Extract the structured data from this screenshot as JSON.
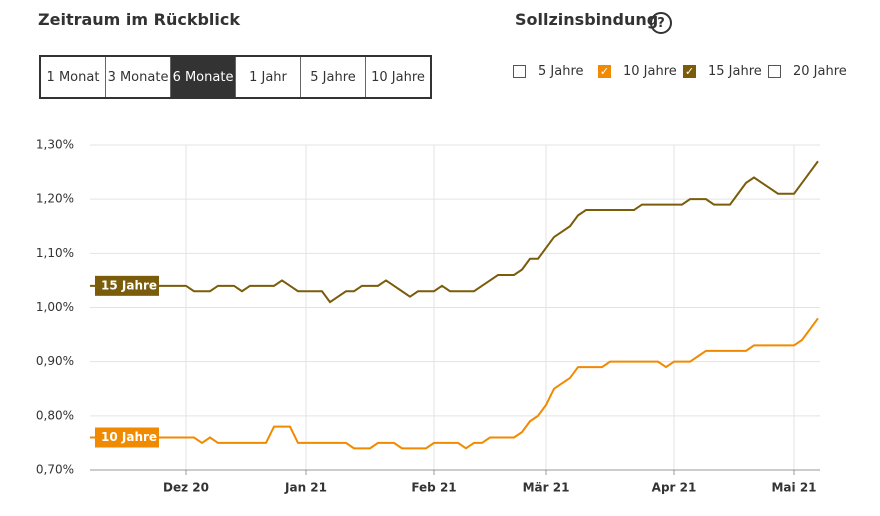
{
  "ui": {
    "range_title": "Zeitraum im Rückblick",
    "range_buttons": [
      {
        "label": "1 Monat",
        "active": false
      },
      {
        "label": "3 Monate",
        "active": false
      },
      {
        "label": "6 Monate",
        "active": true
      },
      {
        "label": "1 Jahr",
        "active": false
      },
      {
        "label": "5 Jahre",
        "active": false
      },
      {
        "label": "10 Jahre",
        "active": false
      }
    ],
    "filter_title": "Sollzinsbindung",
    "help": "?",
    "filters": [
      {
        "label": "5 Jahre",
        "checked": false
      },
      {
        "label": "10 Jahre",
        "checked": true,
        "color": "#f08a00"
      },
      {
        "label": "15 Jahre",
        "checked": true,
        "color": "#7a5c0a"
      },
      {
        "label": "20 Jahre",
        "checked": false
      }
    ]
  },
  "chart_data": {
    "type": "line",
    "categories": [
      null,
      null,
      null,
      null,
      null,
      null,
      null,
      null,
      null,
      null,
      null,
      null,
      "Dez 20",
      null,
      null,
      null,
      null,
      null,
      null,
      null,
      null,
      null,
      null,
      null,
      null,
      null,
      null,
      "Jan 21",
      null,
      null,
      null,
      null,
      null,
      null,
      null,
      null,
      null,
      null,
      null,
      null,
      null,
      null,
      null,
      "Feb 21",
      null,
      null,
      null,
      null,
      null,
      null,
      null,
      null,
      null,
      null,
      null,
      null,
      null,
      "Mär 21",
      null,
      null,
      null,
      null,
      null,
      null,
      null,
      null,
      null,
      null,
      null,
      null,
      null,
      null,
      null,
      "Apr 21",
      null,
      null,
      null,
      null,
      null,
      null,
      null,
      null,
      null,
      null,
      null,
      null,
      null,
      null,
      "Mai 21",
      null,
      null,
      null
    ],
    "series": [
      {
        "name": "15 Jahre",
        "color": "#7a5c0a",
        "values": [
          1.04,
          1.04,
          1.04,
          1.04,
          1.04,
          1.04,
          1.04,
          1.04,
          1.04,
          1.04,
          1.04,
          1.04,
          1.04,
          1.03,
          1.03,
          1.03,
          1.04,
          1.04,
          1.04,
          1.03,
          1.04,
          1.04,
          1.04,
          1.04,
          1.05,
          1.04,
          1.03,
          1.03,
          1.03,
          1.03,
          1.01,
          1.02,
          1.03,
          1.03,
          1.04,
          1.04,
          1.04,
          1.05,
          1.04,
          1.03,
          1.02,
          1.03,
          1.03,
          1.03,
          1.04,
          1.03,
          1.03,
          1.03,
          1.03,
          1.04,
          1.05,
          1.06,
          1.06,
          1.06,
          1.07,
          1.09,
          1.09,
          1.11,
          1.13,
          1.14,
          1.15,
          1.17,
          1.18,
          1.18,
          1.18,
          1.18,
          1.18,
          1.18,
          1.18,
          1.19,
          1.19,
          1.19,
          1.19,
          1.19,
          1.19,
          1.2,
          1.2,
          1.2,
          1.19,
          1.19,
          1.19,
          1.21,
          1.23,
          1.24,
          1.23,
          1.22,
          1.21,
          1.21,
          1.21,
          1.23,
          1.25,
          1.27
        ]
      },
      {
        "name": "10 Jahre",
        "color": "#f08a00",
        "values": [
          0.76,
          0.76,
          0.76,
          0.76,
          0.76,
          0.76,
          0.76,
          0.76,
          0.76,
          0.76,
          0.76,
          0.76,
          0.76,
          0.76,
          0.75,
          0.76,
          0.75,
          0.75,
          0.75,
          0.75,
          0.75,
          0.75,
          0.75,
          0.78,
          0.78,
          0.78,
          0.75,
          0.75,
          0.75,
          0.75,
          0.75,
          0.75,
          0.75,
          0.74,
          0.74,
          0.74,
          0.75,
          0.75,
          0.75,
          0.74,
          0.74,
          0.74,
          0.74,
          0.75,
          0.75,
          0.75,
          0.75,
          0.74,
          0.75,
          0.75,
          0.76,
          0.76,
          0.76,
          0.76,
          0.77,
          0.79,
          0.8,
          0.82,
          0.85,
          0.86,
          0.87,
          0.89,
          0.89,
          0.89,
          0.89,
          0.9,
          0.9,
          0.9,
          0.9,
          0.9,
          0.9,
          0.9,
          0.89,
          0.9,
          0.9,
          0.9,
          0.91,
          0.92,
          0.92,
          0.92,
          0.92,
          0.92,
          0.92,
          0.93,
          0.93,
          0.93,
          0.93,
          0.93,
          0.93,
          0.94,
          0.96,
          0.98
        ]
      }
    ],
    "ylim": [
      0.7,
      1.3
    ],
    "yticks": [
      {
        "value": 0.7,
        "label": "0,70%"
      },
      {
        "value": 0.8,
        "label": "0,80%"
      },
      {
        "value": 0.9,
        "label": "0,90%"
      },
      {
        "value": 1.0,
        "label": "1,00%"
      },
      {
        "value": 1.1,
        "label": "1,10%"
      },
      {
        "value": 1.2,
        "label": "1,20%"
      },
      {
        "value": 1.3,
        "label": "1,30%"
      }
    ],
    "grid": true
  }
}
